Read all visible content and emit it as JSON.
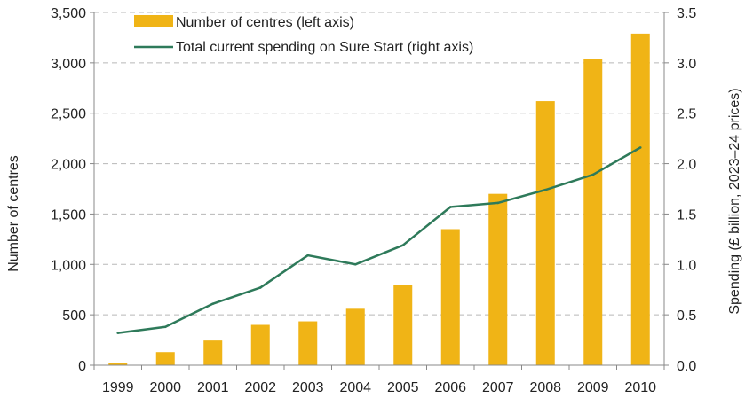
{
  "chart_data": {
    "type": "bar+line",
    "categories": [
      "1999",
      "2000",
      "2001",
      "2002",
      "2003",
      "2004",
      "2005",
      "2006",
      "2007",
      "2008",
      "2009",
      "2010"
    ],
    "series": [
      {
        "name": "Number of centres (left axis)",
        "type": "bar",
        "axis": "left",
        "color": "#F0B416",
        "values": [
          25,
          130,
          245,
          400,
          435,
          560,
          800,
          1350,
          1700,
          2620,
          3040,
          3290
        ]
      },
      {
        "name": "Total current spending on Sure Start (right axis)",
        "type": "line",
        "axis": "right",
        "color": "#2E7A5A",
        "values": [
          0.32,
          0.38,
          0.61,
          0.77,
          1.09,
          1.0,
          1.19,
          1.57,
          1.61,
          1.74,
          1.89,
          2.16
        ]
      }
    ],
    "left_axis": {
      "label": "Number of centres",
      "range": [
        0,
        3500
      ],
      "ticks": [
        0,
        500,
        1000,
        1500,
        2000,
        2500,
        3000,
        3500
      ],
      "tick_labels": [
        "0",
        "500",
        "1,000",
        "1,500",
        "2,000",
        "2,500",
        "3,000",
        "3,500"
      ]
    },
    "right_axis": {
      "label": "Spending (£ billion, 2023–24 prices)",
      "range": [
        0,
        3.5
      ],
      "ticks": [
        0,
        0.5,
        1.0,
        1.5,
        2.0,
        2.5,
        3.0,
        3.5
      ],
      "tick_labels": [
        "0.0",
        "0.5",
        "1.0",
        "1.5",
        "2.0",
        "2.5",
        "3.0",
        "3.5"
      ]
    },
    "grid": true,
    "legend_position": "top-left"
  }
}
